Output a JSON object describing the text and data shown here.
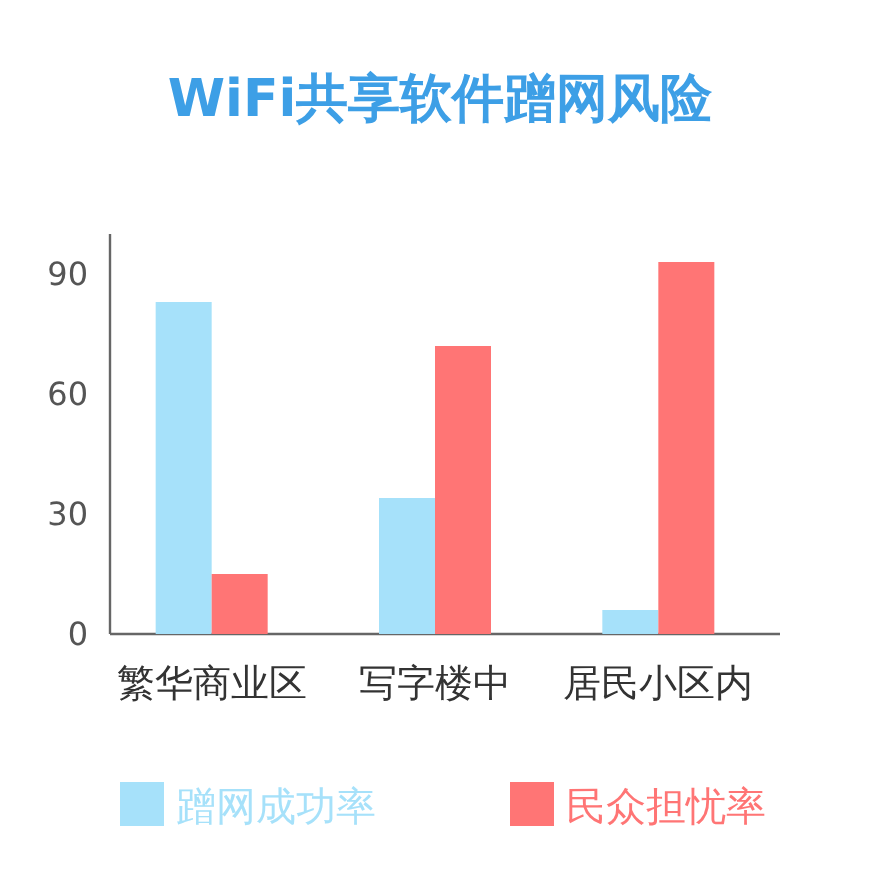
{
  "chart_data": {
    "type": "bar",
    "title": "WiFi共享软件蹭网风险",
    "categories": [
      "繁华商业区",
      "写字楼中",
      "居民小区内"
    ],
    "series": [
      {
        "name": "蹭网成功率",
        "color": "#a6e1fa",
        "values": [
          83,
          34,
          6
        ]
      },
      {
        "name": "民众担忧率",
        "color": "#ff7575",
        "values": [
          15,
          72,
          93
        ]
      }
    ],
    "ylim": [
      0,
      100
    ],
    "yticks": [
      0,
      30,
      60,
      90
    ],
    "grid": false,
    "legend": "bottom"
  }
}
